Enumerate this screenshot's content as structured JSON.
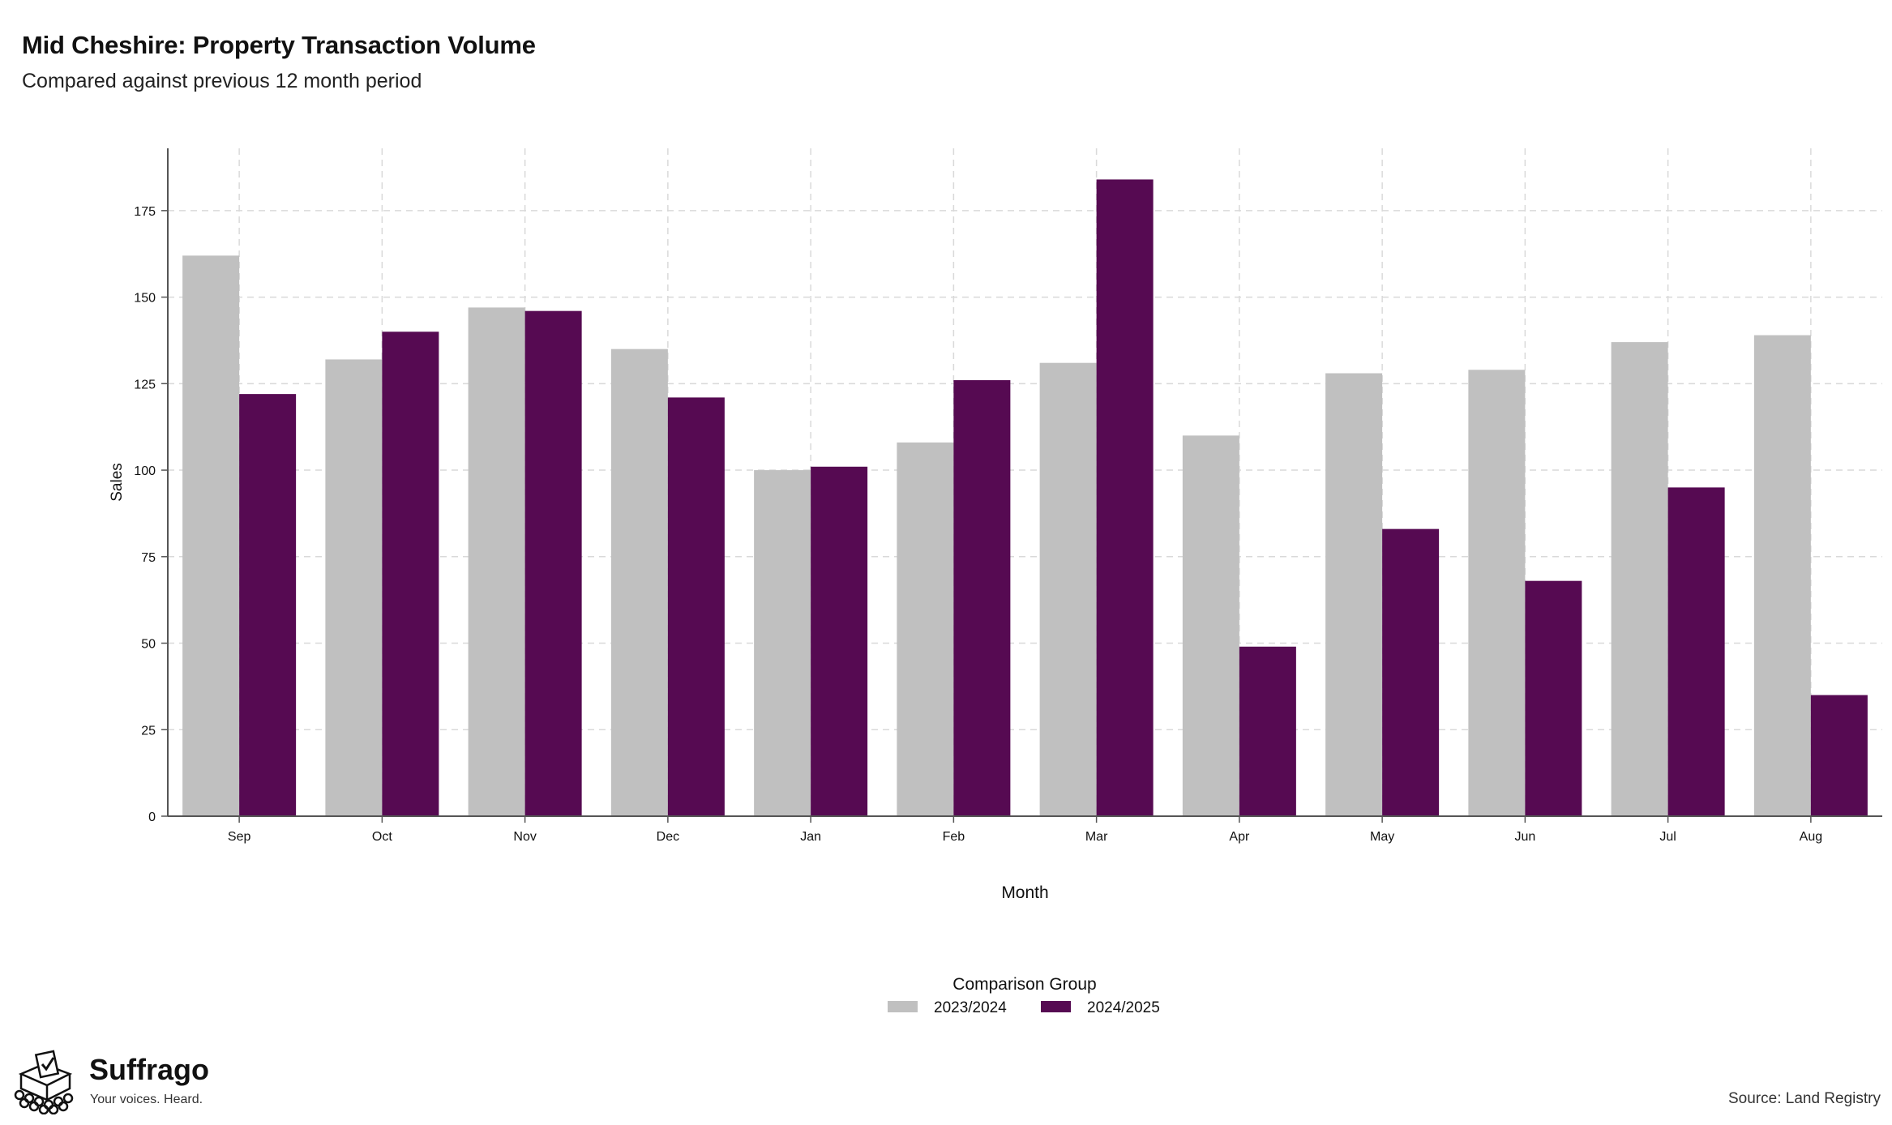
{
  "header": {
    "title": "Mid Cheshire: Property Transaction Volume",
    "subtitle": "Compared against previous 12 month period"
  },
  "chart_data": {
    "type": "bar",
    "categories": [
      "Sep",
      "Oct",
      "Nov",
      "Dec",
      "Jan",
      "Feb",
      "Mar",
      "Apr",
      "May",
      "Jun",
      "Jul",
      "Aug"
    ],
    "series": [
      {
        "name": "2023/2024",
        "color": "#c0c0c0",
        "values": [
          162,
          132,
          147,
          135,
          100,
          108,
          131,
          110,
          128,
          129,
          137,
          139
        ]
      },
      {
        "name": "2024/2025",
        "color": "#560a52",
        "values": [
          122,
          140,
          146,
          121,
          101,
          126,
          184,
          49,
          83,
          68,
          95,
          35
        ]
      }
    ],
    "xlabel": "Month",
    "ylabel": "Sales",
    "ylim": [
      0,
      193
    ],
    "yticks": [
      0,
      25,
      50,
      75,
      100,
      125,
      150,
      175
    ],
    "grid": true,
    "legend_title": "Comparison Group",
    "legend_position": "bottom"
  },
  "footer": {
    "brand": "Suffrago",
    "tagline": "Your voices. Heard.",
    "source": "Source: Land Registry"
  }
}
